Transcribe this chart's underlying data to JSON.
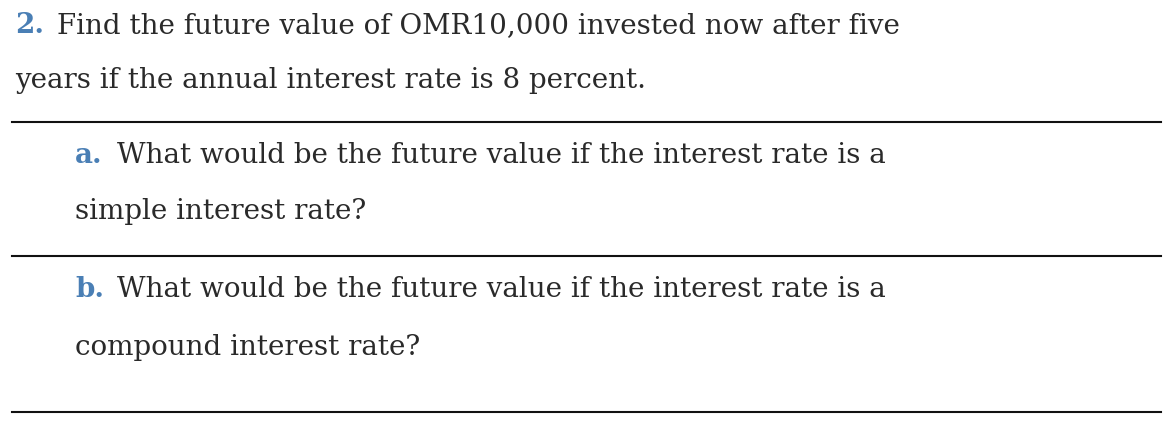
{
  "background_color": "#ffffff",
  "figsize": [
    11.67,
    4.28
  ],
  "dpi": 100,
  "main_number": "2.",
  "main_text_line1": "Find the future value of OMR10,000 invested now after five",
  "main_text_line2": "years if the annual interest rate is 8 percent.",
  "sub_a_label": "a.",
  "sub_a_text_line1": "What would be the future value if the interest rate is a",
  "sub_a_text_line2": "simple interest rate?",
  "sub_b_label": "b.",
  "sub_b_text_line1": "What would be the future value if the interest rate is a",
  "sub_b_text_line2": "compound interest rate?",
  "label_color": "#4a7fb5",
  "text_color": "#2a2a2a",
  "font_family": "serif",
  "main_fontsize": 20,
  "sub_fontsize": 20,
  "line_color": "#111111",
  "line_width": 1.5
}
